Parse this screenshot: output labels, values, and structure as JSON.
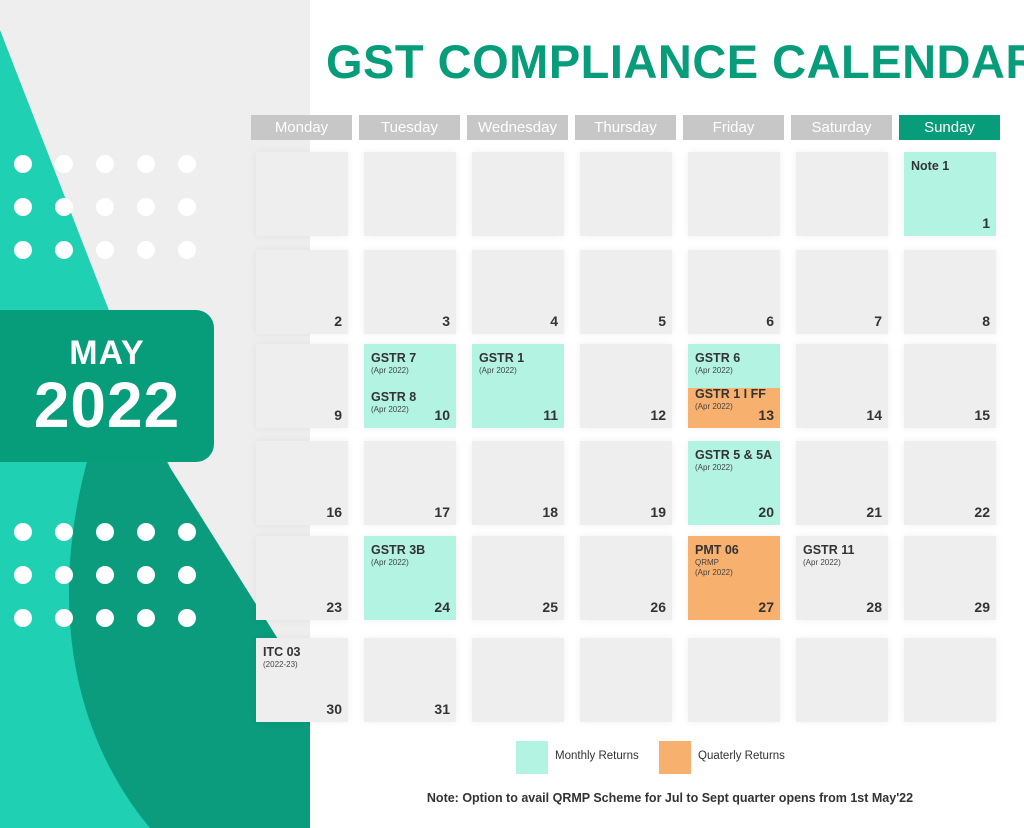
{
  "title": "GST COMPLIANCE CALENDAR",
  "badge": {
    "month": "MAY",
    "year": "2022"
  },
  "colors": {
    "accent": "#079c7a",
    "teal": "#1fd0b3",
    "monthly": "#b3f3e2",
    "quarterly": "#f7b06e",
    "header_gray": "#c7c7c7"
  },
  "days": [
    "Monday",
    "Tuesday",
    "Wednesday",
    "Thursday",
    "Friday",
    "Saturday",
    "Sunday"
  ],
  "cells": [
    {
      "row": 0,
      "col": 0,
      "date": "",
      "type": "",
      "events": []
    },
    {
      "row": 0,
      "col": 1,
      "date": "",
      "type": "",
      "events": []
    },
    {
      "row": 0,
      "col": 2,
      "date": "",
      "type": "",
      "events": []
    },
    {
      "row": 0,
      "col": 3,
      "date": "",
      "type": "",
      "events": []
    },
    {
      "row": 0,
      "col": 4,
      "date": "",
      "type": "",
      "events": []
    },
    {
      "row": 0,
      "col": 5,
      "date": "",
      "type": "",
      "events": []
    },
    {
      "row": 0,
      "col": 6,
      "date": "1",
      "type": "monthly",
      "events": [
        {
          "name": "Note 1"
        }
      ]
    },
    {
      "row": 1,
      "col": 0,
      "date": "2",
      "type": "",
      "events": []
    },
    {
      "row": 1,
      "col": 1,
      "date": "3",
      "type": "",
      "events": []
    },
    {
      "row": 1,
      "col": 2,
      "date": "4",
      "type": "",
      "events": []
    },
    {
      "row": 1,
      "col": 3,
      "date": "5",
      "type": "",
      "events": []
    },
    {
      "row": 1,
      "col": 4,
      "date": "6",
      "type": "",
      "events": []
    },
    {
      "row": 1,
      "col": 5,
      "date": "7",
      "type": "",
      "events": []
    },
    {
      "row": 1,
      "col": 6,
      "date": "8",
      "type": "",
      "events": []
    },
    {
      "row": 2,
      "col": 0,
      "date": "9",
      "type": "",
      "events": []
    },
    {
      "row": 2,
      "col": 1,
      "date": "10",
      "type": "monthly",
      "events": [
        {
          "name": "GSTR 7",
          "sub": "(Apr 2022)"
        },
        {
          "name": "GSTR 8",
          "sub": "(Apr 2022)"
        }
      ]
    },
    {
      "row": 2,
      "col": 2,
      "date": "11",
      "type": "monthly",
      "events": [
        {
          "name": "GSTR 1",
          "sub": "(Apr 2022)"
        }
      ]
    },
    {
      "row": 2,
      "col": 3,
      "date": "12",
      "type": "",
      "events": []
    },
    {
      "row": 2,
      "col": 4,
      "date": "13",
      "type": "split",
      "events": [
        {
          "name": "GSTR 6",
          "sub": "(Apr 2022)"
        },
        {
          "name": "GSTR 1 I FF",
          "sub": "(Apr 2022)"
        }
      ]
    },
    {
      "row": 2,
      "col": 5,
      "date": "14",
      "type": "",
      "events": []
    },
    {
      "row": 2,
      "col": 6,
      "date": "15",
      "type": "",
      "events": []
    },
    {
      "row": 3,
      "col": 0,
      "date": "16",
      "type": "",
      "events": []
    },
    {
      "row": 3,
      "col": 1,
      "date": "17",
      "type": "",
      "events": []
    },
    {
      "row": 3,
      "col": 2,
      "date": "18",
      "type": "",
      "events": []
    },
    {
      "row": 3,
      "col": 3,
      "date": "19",
      "type": "",
      "events": []
    },
    {
      "row": 3,
      "col": 4,
      "date": "20",
      "type": "monthly",
      "events": [
        {
          "name": "GSTR 5 & 5A",
          "sub": "(Apr 2022)"
        }
      ]
    },
    {
      "row": 3,
      "col": 5,
      "date": "21",
      "type": "",
      "events": []
    },
    {
      "row": 3,
      "col": 6,
      "date": "22",
      "type": "",
      "events": []
    },
    {
      "row": 4,
      "col": 0,
      "date": "23",
      "type": "",
      "events": []
    },
    {
      "row": 4,
      "col": 1,
      "date": "24",
      "type": "monthly",
      "events": [
        {
          "name": "GSTR 3B",
          "sub": "(Apr 2022)"
        }
      ]
    },
    {
      "row": 4,
      "col": 2,
      "date": "25",
      "type": "",
      "events": []
    },
    {
      "row": 4,
      "col": 3,
      "date": "26",
      "type": "",
      "events": []
    },
    {
      "row": 4,
      "col": 4,
      "date": "27",
      "type": "quarterly",
      "events": [
        {
          "name": "PMT 06",
          "sub": "QRMP",
          "sub2": "(Apr 2022)"
        }
      ]
    },
    {
      "row": 4,
      "col": 5,
      "date": "28",
      "type": "",
      "events": [
        {
          "name": "GSTR 11",
          "sub": "(Apr 2022)"
        }
      ]
    },
    {
      "row": 4,
      "col": 6,
      "date": "29",
      "type": "",
      "events": []
    },
    {
      "row": 5,
      "col": 0,
      "date": "30",
      "type": "",
      "events": [
        {
          "name": "ITC 03",
          "sub": "(2022-23)"
        }
      ]
    },
    {
      "row": 5,
      "col": 1,
      "date": "31",
      "type": "",
      "events": []
    },
    {
      "row": 5,
      "col": 2,
      "date": "",
      "type": "",
      "events": []
    },
    {
      "row": 5,
      "col": 3,
      "date": "",
      "type": "",
      "events": []
    },
    {
      "row": 5,
      "col": 4,
      "date": "",
      "type": "",
      "events": []
    },
    {
      "row": 5,
      "col": 5,
      "date": "",
      "type": "",
      "events": []
    },
    {
      "row": 5,
      "col": 6,
      "date": "",
      "type": "",
      "events": []
    }
  ],
  "legend": [
    {
      "label": "Monthly Returns",
      "color": "#b3f3e2"
    },
    {
      "label": "Quaterly Returns",
      "color": "#f7b06e"
    }
  ],
  "note": "Note: Option to avail QRMP Scheme for Jul to Sept quarter opens from 1st May'22"
}
